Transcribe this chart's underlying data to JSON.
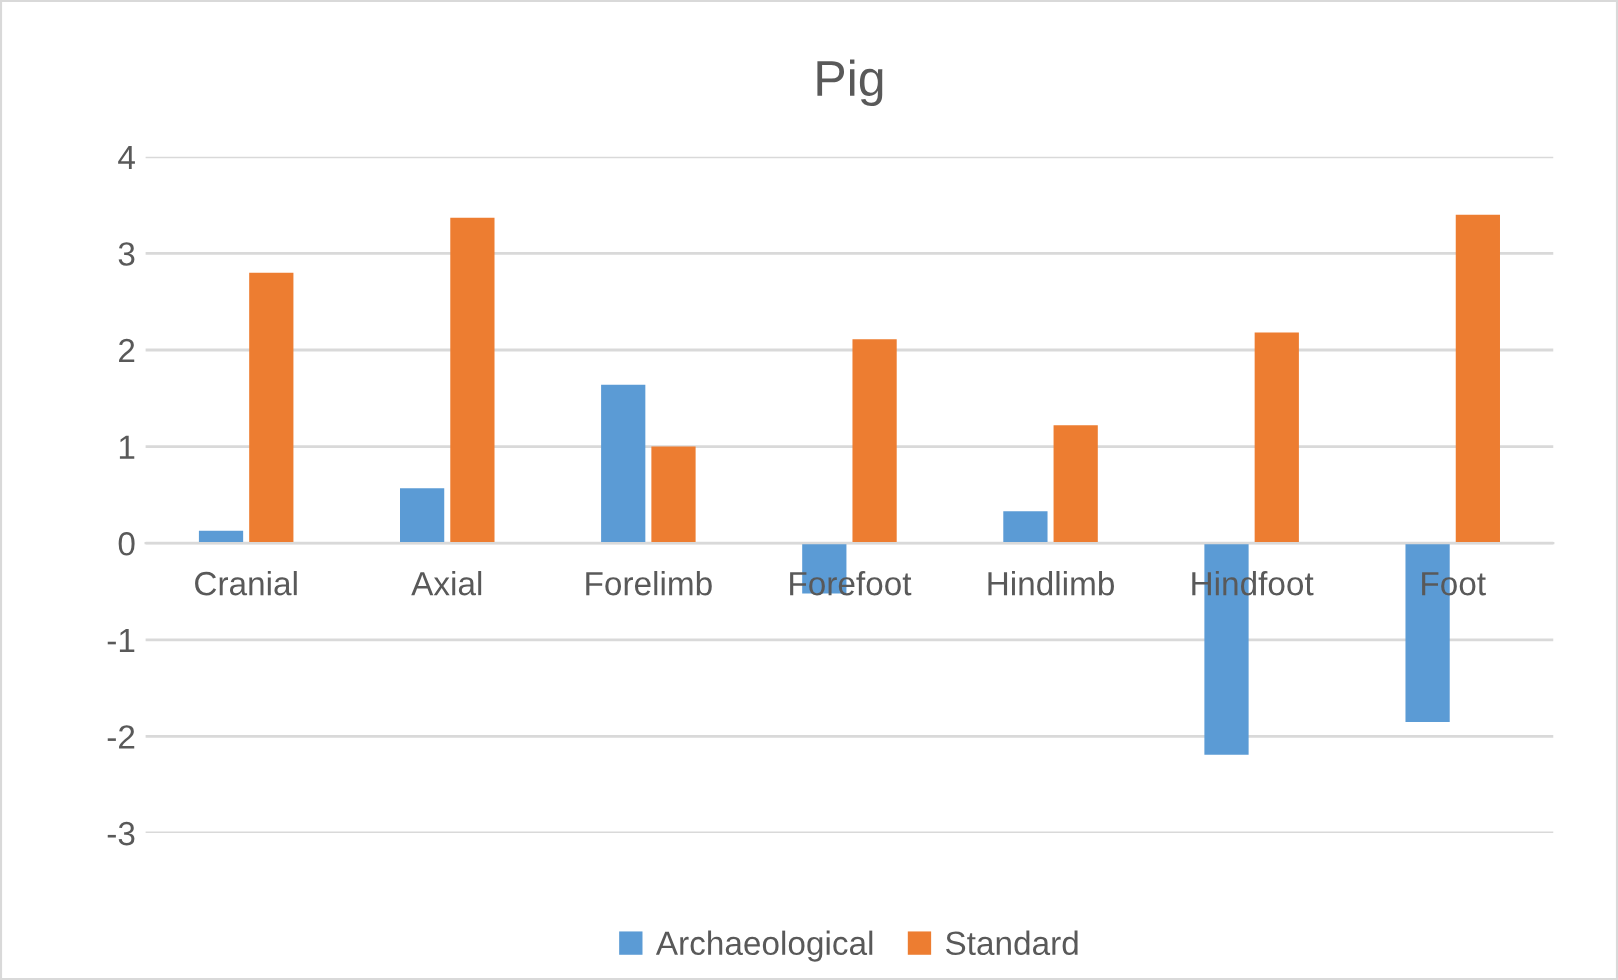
{
  "chart_data": {
    "type": "bar",
    "title": "Pig",
    "categories": [
      "Cranial",
      "Axial",
      "Forelimb",
      "Forefoot",
      "Hindlimb",
      "Hindfoot",
      "Foot"
    ],
    "series": [
      {
        "name": "Archaeological",
        "color": "#5b9bd5",
        "values": [
          0.13,
          0.57,
          1.64,
          -0.52,
          0.33,
          -2.19,
          -1.85
        ]
      },
      {
        "name": "Standard",
        "color": "#ed7d31",
        "values": [
          2.8,
          3.37,
          1.0,
          2.11,
          1.22,
          2.18,
          3.4
        ]
      }
    ],
    "ylim": [
      -3,
      4
    ],
    "yticks": [
      -3,
      -2,
      -1,
      0,
      1,
      2,
      3,
      4
    ],
    "grid": "y",
    "legend": "bottom"
  }
}
